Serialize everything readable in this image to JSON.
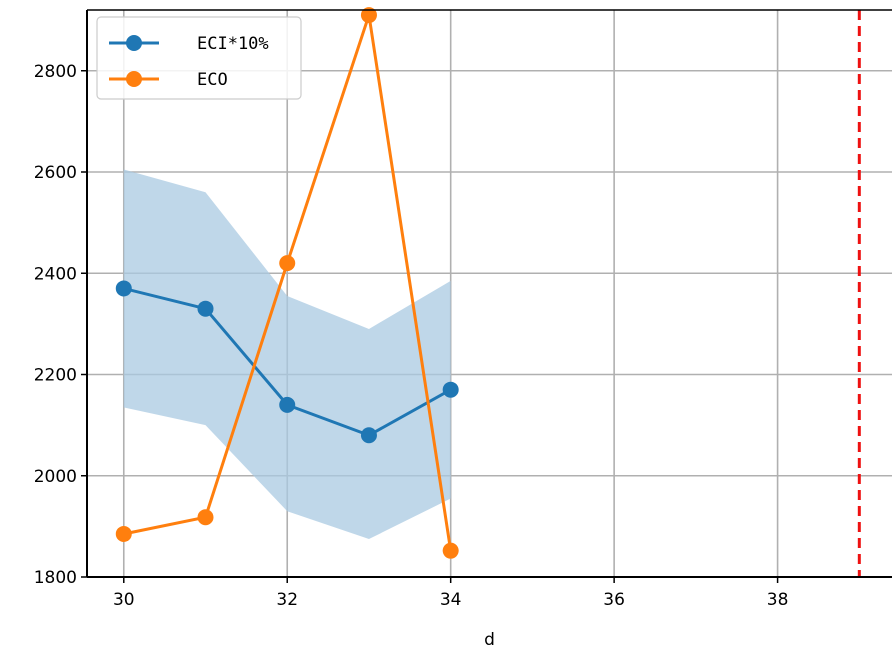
{
  "chart_data": {
    "type": "line",
    "xlabel": "d",
    "ylabel": "",
    "title": "",
    "xlim": [
      29.55,
      39.4
    ],
    "ylim": [
      1800,
      2920
    ],
    "xticks": [
      30,
      32,
      34,
      36,
      38
    ],
    "yticks": [
      1800,
      2000,
      2200,
      2400,
      2600,
      2800
    ],
    "grid": true,
    "legend_position": "top-left",
    "series": [
      {
        "name": "ECI*10%",
        "color": "#1f77b4",
        "x": [
          30,
          31,
          32,
          33,
          34
        ],
        "y": [
          2370,
          2330,
          2140,
          2080,
          2170
        ],
        "band_upper": [
          2605,
          2560,
          2355,
          2290,
          2385
        ],
        "band_lower": [
          2135,
          2100,
          1930,
          1875,
          1955
        ],
        "band_color": "#a9c9e2"
      },
      {
        "name": "ECO",
        "color": "#ff7f0e",
        "x": [
          30,
          31,
          32,
          33,
          34
        ],
        "y": [
          1885,
          1918,
          2420,
          2910,
          1852
        ]
      }
    ],
    "vline": {
      "x": 39,
      "color": "#ee1111",
      "style": "dashed"
    }
  }
}
